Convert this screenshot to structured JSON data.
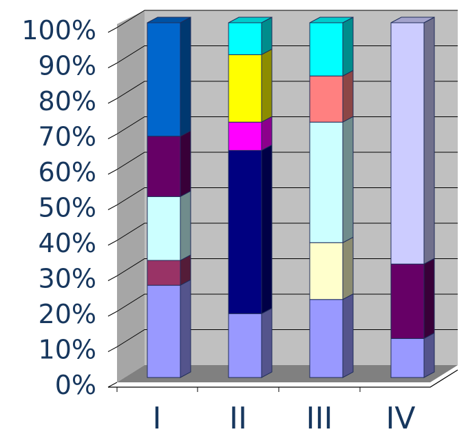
{
  "chart_data": {
    "type": "bar",
    "stacked": true,
    "percent_stacked": true,
    "three_d": true,
    "categories": [
      "I",
      "II",
      "III",
      "IV"
    ],
    "y_tick_labels": [
      "0%",
      "10%",
      "20%",
      "30%",
      "40%",
      "50%",
      "60%",
      "70%",
      "80%",
      "90%",
      "100%"
    ],
    "ylim": [
      0,
      100
    ],
    "grid": true,
    "legend": "none",
    "title": "",
    "xlabel": "",
    "ylabel": "",
    "stacks": [
      [
        {
          "value": 26,
          "color": "#9999ff"
        },
        {
          "value": 7,
          "color": "#993366"
        },
        {
          "value": 18,
          "color": "#ccffff"
        },
        {
          "value": 17,
          "color": "#660066"
        },
        {
          "value": 32,
          "color": "#0066cc"
        }
      ],
      [
        {
          "value": 18,
          "color": "#9999ff"
        },
        {
          "value": 46,
          "color": "#000080"
        },
        {
          "value": 8,
          "color": "#ff00ff"
        },
        {
          "value": 19,
          "color": "#ffff00"
        },
        {
          "value": 9,
          "color": "#00ffff"
        }
      ],
      [
        {
          "value": 22,
          "color": "#9999ff"
        },
        {
          "value": 16,
          "color": "#ffffcc"
        },
        {
          "value": 34,
          "color": "#ccffff"
        },
        {
          "value": 13,
          "color": "#ff8080"
        },
        {
          "value": 15,
          "color": "#00ffff"
        }
      ],
      [
        {
          "value": 11,
          "color": "#9999ff"
        },
        {
          "value": 21,
          "color": "#660066"
        },
        {
          "value": 68,
          "color": "#ccccff"
        }
      ]
    ]
  }
}
